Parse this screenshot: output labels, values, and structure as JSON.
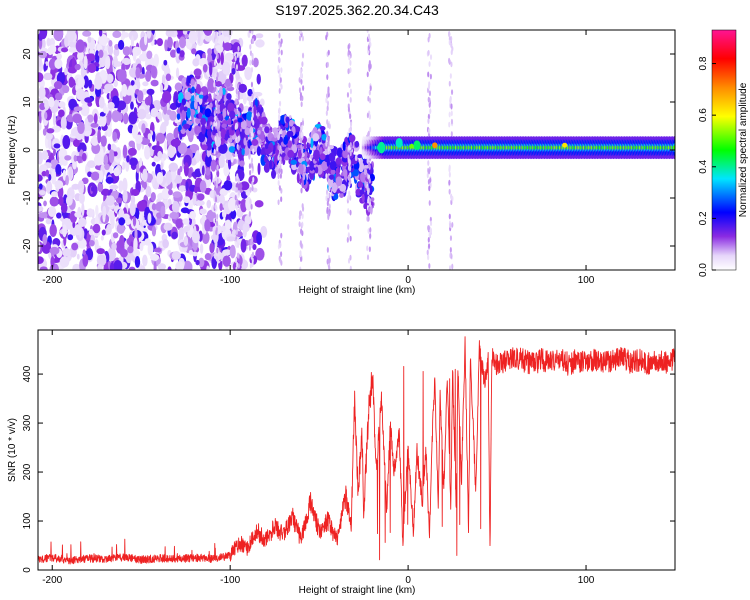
{
  "figure_title": "S197.2025.362.20.34.C43",
  "chart_data": [
    {
      "type": "heatmap",
      "title": "S197.2025.362.20.34.C43",
      "xlabel": "Height of straight line (km)",
      "ylabel": "Frequency (Hz)",
      "xlim": [
        -208,
        150
      ],
      "ylim": [
        -25,
        25
      ],
      "xticks": [
        -200,
        -100,
        0,
        100
      ],
      "yticks": [
        -20,
        -10,
        0,
        10,
        20
      ],
      "colorbar": {
        "label": "Normalized spectral amplitude",
        "range": [
          0.0,
          0.93
        ],
        "ticks": [
          0.0,
          0.2,
          0.4,
          0.6,
          0.8
        ],
        "tick_labels": [
          "0.0",
          "0.2",
          "0.4",
          "0.6",
          "0.8"
        ],
        "colormap": [
          "#ffffff",
          "#c9a8f0",
          "#8a2be2",
          "#0000ff",
          "#00e5ff",
          "#00ff00",
          "#ffff00",
          "#ff8c00",
          "#ff0000",
          "#ff1493"
        ]
      },
      "features": [
        {
          "name": "diffuse noise",
          "x_range": [
            -208,
            -100
          ],
          "freq_range": [
            -25,
            25
          ],
          "amplitude": 0.1
        },
        {
          "name": "descending arrivals",
          "x_range": [
            -130,
            -20
          ],
          "freq_range": [
            -10,
            12
          ],
          "amplitude": 0.2
        },
        {
          "name": "steady tone",
          "x_range": [
            -25,
            150
          ],
          "freq_center": 0.5,
          "freq_halfwidth": 2,
          "amplitude": 0.3
        }
      ]
    },
    {
      "type": "line",
      "xlabel": "Height of straight line (km)",
      "ylabel": "SNR (10 * v/v)",
      "xlim": [
        -208,
        150
      ],
      "ylim": [
        0,
        490
      ],
      "xticks": [
        -200,
        -100,
        0,
        100
      ],
      "yticks": [
        0,
        100,
        200,
        300,
        400
      ],
      "line_color": "#ee2222",
      "series": [
        {
          "name": "SNR",
          "x": [
            -208,
            -200,
            -190,
            -180,
            -170,
            -160,
            -150,
            -140,
            -130,
            -120,
            -110,
            -105,
            -100,
            -95,
            -90,
            -85,
            -80,
            -75,
            -70,
            -65,
            -60,
            -55,
            -50,
            -45,
            -40,
            -35,
            -32,
            -30,
            -28,
            -26,
            -25,
            -22,
            -20,
            -18,
            -15,
            -12,
            -10,
            -8,
            -5,
            -3,
            0,
            3,
            5,
            8,
            10,
            12,
            14,
            15,
            17,
            18,
            20,
            22,
            24,
            25,
            27,
            28,
            30,
            32,
            34,
            35,
            38,
            40,
            43,
            45,
            46,
            47,
            48,
            50,
            55,
            60,
            65,
            70,
            75,
            80,
            85,
            90,
            95,
            100,
            105,
            110,
            115,
            120,
            125,
            130,
            135,
            140,
            145,
            150
          ],
          "y": [
            22,
            25,
            20,
            24,
            22,
            26,
            21,
            24,
            22,
            25,
            23,
            26,
            30,
            55,
            45,
            80,
            60,
            90,
            70,
            110,
            60,
            140,
            80,
            100,
            60,
            150,
            90,
            350,
            150,
            300,
            120,
            330,
            410,
            200,
            350,
            120,
            300,
            200,
            280,
            60,
            250,
            80,
            240,
            140,
            250,
            70,
            320,
            380,
            120,
            360,
            160,
            400,
            110,
            410,
            120,
            420,
            180,
            460,
            80,
            440,
            160,
            455,
            380,
            430,
            25,
            430,
            440,
            420,
            425,
            435,
            428,
            420,
            430,
            425,
            432,
            420,
            428,
            425,
            430,
            422,
            428,
            432,
            425,
            430,
            420,
            428,
            425,
            432
          ]
        }
      ]
    }
  ]
}
